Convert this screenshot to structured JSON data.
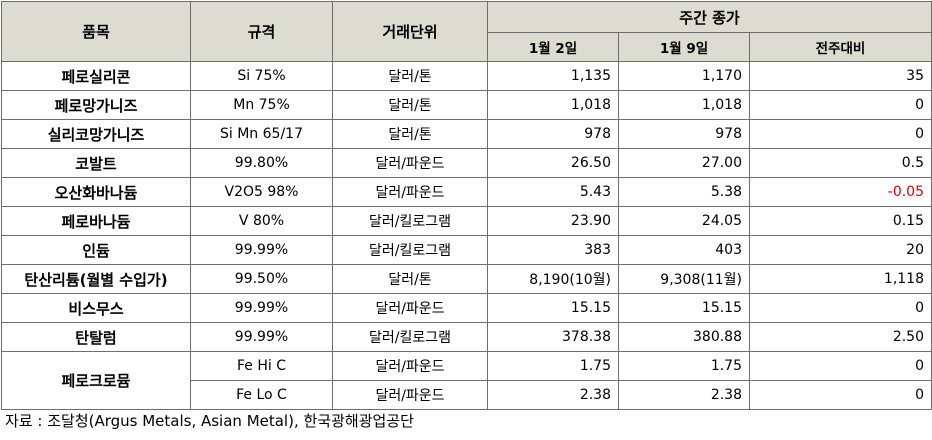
{
  "headers": {
    "item": "품목",
    "spec": "규격",
    "unit": "거래단위",
    "weekly_close": "주간 종가",
    "date1": "1월 2일",
    "date2": "1월 9일",
    "change": "전주대비"
  },
  "rows": [
    {
      "item": "페로실리콘",
      "spec": "Si 75%",
      "unit": "달러/톤",
      "v1": "1,135",
      "v2": "1,170",
      "chg": "35"
    },
    {
      "item": "페로망가니즈",
      "spec": "Mn 75%",
      "unit": "달러/톤",
      "v1": "1,018",
      "v2": "1,018",
      "chg": "0"
    },
    {
      "item": "실리코망가니즈",
      "spec": "Si Mn 65/17",
      "unit": "달러/톤",
      "v1": "978",
      "v2": "978",
      "chg": "0"
    },
    {
      "item": "코발트",
      "spec": "99.80%",
      "unit": "달러/파운드",
      "v1": "26.50",
      "v2": "27.00",
      "chg": "0.5"
    },
    {
      "item": "오산화바나듐",
      "spec": "V2O5 98%",
      "unit": "달러/파운드",
      "v1": "5.43",
      "v2": "5.38",
      "chg": "-0.05"
    },
    {
      "item": "페로바나듐",
      "spec": "V 80%",
      "unit": "달러/킬로그램",
      "v1": "23.90",
      "v2": "24.05",
      "chg": "0.15"
    },
    {
      "item": "인듐",
      "spec": "99.99%",
      "unit": "달러/킬로그램",
      "v1": "383",
      "v2": "403",
      "chg": "20"
    },
    {
      "item": "탄산리튬(월별 수입가)",
      "spec": "99.50%",
      "unit": "달러/톤",
      "v1": "8,190(10월)",
      "v2": "9,308(11월)",
      "chg": "1,118"
    },
    {
      "item": "비스무스",
      "spec": "99.99%",
      "unit": "달러/파운드",
      "v1": "15.15",
      "v2": "15.15",
      "chg": "0"
    },
    {
      "item": "탄탈럼",
      "spec": "99.99%",
      "unit": "달러/킬로그램",
      "v1": "378.38",
      "v2": "380.88",
      "chg": "2.50"
    }
  ],
  "ferrochrome": {
    "item": "페로크로뮴",
    "sub": [
      {
        "spec": "Fe Hi C",
        "unit": "달러/파운드",
        "v1": "1.75",
        "v2": "1.75",
        "chg": "0"
      },
      {
        "spec": "Fe Lo C",
        "unit": "달러/파운드",
        "v1": "2.38",
        "v2": "2.38",
        "chg": "0"
      }
    ]
  },
  "source": "자료 : 조달청(Argus Metals, Asian Metal), 한국광해광업공단",
  "colors": {
    "header_bg": "#dcdcd0",
    "negative": "#e00000",
    "border": "#6e6e6e"
  }
}
